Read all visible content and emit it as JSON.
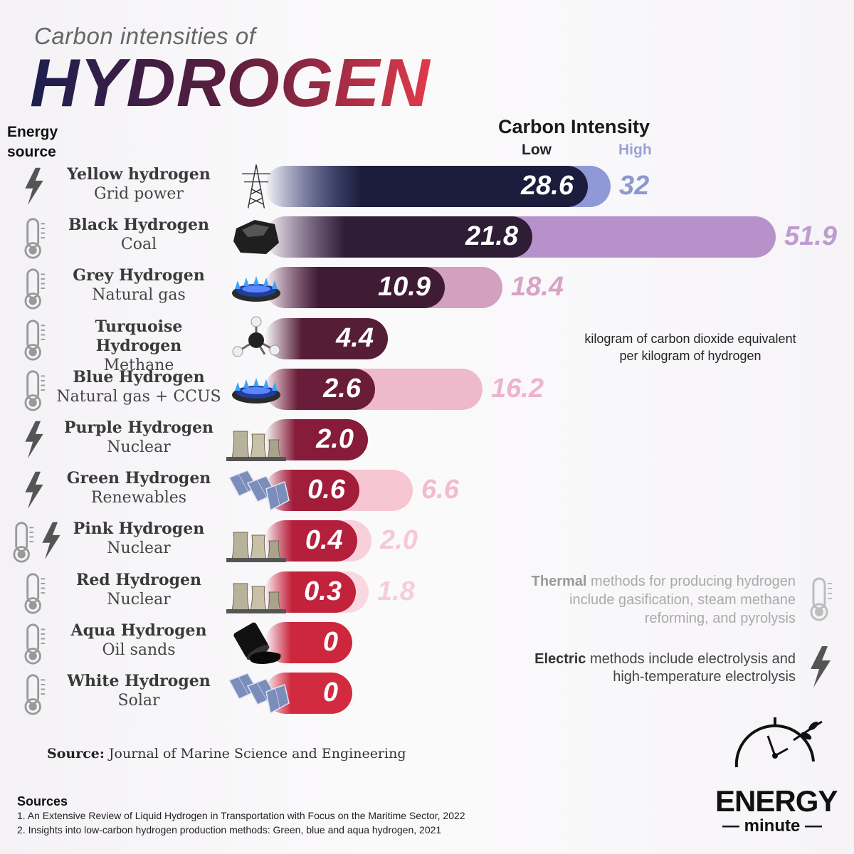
{
  "header": {
    "subtitle": "Carbon intensities of",
    "title": "HYDROGEN"
  },
  "energy_source_label": [
    "Energy",
    "source"
  ],
  "chart_data": {
    "type": "bar",
    "title": "Carbon Intensity",
    "legend": {
      "low": "Low",
      "high": "High"
    },
    "unit": "kilogram of carbon dioxide equivalent per kilogram of hydrogen",
    "categories": [
      "Yellow hydrogen",
      "Black Hydrogen",
      "Grey Hydrogen",
      "Turquoise Hydrogen",
      "Blue Hydrogen",
      "Purple Hydrogen",
      "Green Hydrogen",
      "Pink Hydrogen",
      "Red Hydrogen",
      "Aqua Hydrogen",
      "White Hydrogen"
    ],
    "series": [
      {
        "name": "Low",
        "values": [
          28.6,
          21.8,
          10.9,
          4.4,
          2.6,
          2.0,
          0.6,
          0.4,
          0.3,
          0,
          0
        ]
      },
      {
        "name": "High",
        "values": [
          32,
          51.9,
          18.4,
          null,
          16.2,
          null,
          6.6,
          2.0,
          1.8,
          null,
          null
        ]
      }
    ],
    "rows": [
      {
        "name": "Yellow hydrogen",
        "source": "Grid power",
        "method": "electric",
        "pic": "pylon",
        "low": "28.6",
        "high": "32",
        "low_num": 28.6,
        "high_num": 32,
        "color": "#1c1d3c",
        "high_color": "#8f99d6",
        "high_text": "#8d98cf"
      },
      {
        "name": "Black Hydrogen",
        "source": "Coal",
        "method": "thermal",
        "pic": "coal",
        "low": "21.8",
        "high": "51.9",
        "low_num": 21.8,
        "high_num": 51.9,
        "color": "#2f1d36",
        "high_color": "#b791c9",
        "high_text": "#bf9bd0"
      },
      {
        "name": "Grey Hydrogen",
        "source": "Natural gas",
        "method": "thermal",
        "pic": "gas-burner",
        "low": "10.9",
        "high": "18.4",
        "low_num": 10.9,
        "high_num": 18.4,
        "color": "#401c34",
        "high_color": "#d3a0bf",
        "high_text": "#d7a4c4"
      },
      {
        "name": "Turquoise Hydrogen",
        "source": "Methane",
        "method": "thermal",
        "pic": "molecule",
        "low": "4.4",
        "high": "",
        "low_num": 4.4,
        "high_num": null,
        "color": "#561d37",
        "high_color": "",
        "high_text": ""
      },
      {
        "name": "Blue Hydrogen",
        "source": "Natural gas + CCUS",
        "method": "thermal",
        "pic": "gas-burner",
        "low": "2.6",
        "high": "16.2",
        "low_num": 2.6,
        "high_num": 16.2,
        "color": "#6a1d38",
        "high_color": "#efb9cc",
        "high_text": "#eeb4c9"
      },
      {
        "name": "Purple Hydrogen",
        "source": "Nuclear",
        "method": "electric",
        "pic": "nuclear",
        "low": "2.0",
        "high": "",
        "low_num": 2.0,
        "high_num": null,
        "color": "#861c39",
        "high_color": "",
        "high_text": ""
      },
      {
        "name": "Green Hydrogen",
        "source": "Renewables",
        "method": "electric",
        "pic": "solar",
        "low": "0.6",
        "high": "6.6",
        "low_num": 0.6,
        "high_num": 6.6,
        "color": "#a21d3a",
        "high_color": "#f6c6d2",
        "high_text": "#f3bccb"
      },
      {
        "name": "Pink Hydrogen",
        "source": "Nuclear",
        "method": "both",
        "pic": "nuclear",
        "low": "0.4",
        "high": "2.0",
        "low_num": 0.4,
        "high_num": 2.0,
        "color": "#b41f3b",
        "high_color": "#f8d0da",
        "high_text": "#f5c9d4"
      },
      {
        "name": "Red Hydrogen",
        "source": "Nuclear",
        "method": "thermal",
        "pic": "nuclear",
        "low": "0.3",
        "high": "1.8",
        "low_num": 0.3,
        "high_num": 1.8,
        "color": "#c2223c",
        "high_color": "#fad8e0",
        "high_text": "#f6ced8"
      },
      {
        "name": "Aqua Hydrogen",
        "source": "Oil sands",
        "method": "thermal",
        "pic": "oil-barrel",
        "low": "0",
        "high": "",
        "low_num": 0,
        "high_num": null,
        "color": "#cc273d",
        "high_color": "",
        "high_text": ""
      },
      {
        "name": "White Hydrogen",
        "source": "Solar",
        "method": "thermal",
        "pic": "solar",
        "low": "0",
        "high": "",
        "low_num": 0,
        "high_num": null,
        "color": "#d22b3f",
        "high_color": "",
        "high_text": ""
      }
    ]
  },
  "notes": {
    "unit_line1": "kilogram of carbon dioxide equivalent",
    "unit_line2": "per kilogram of hydrogen",
    "thermal_bold": "Thermal",
    "thermal_rest_1": " methods for producing hydrogen",
    "thermal_rest_2": "include gasification, steam methane",
    "thermal_rest_3": "reforming, and pyrolysis",
    "electric_bold": "Electric",
    "electric_rest_1": " methods include electrolysis and",
    "electric_rest_2": "high-temperature electrolysis"
  },
  "footer": {
    "source_label": "Source:",
    "source_text": " Journal of Marine Science and Engineering",
    "sources_heading": "Sources",
    "sources": [
      "1.  An Extensive Review of Liquid Hydrogen in Transportation with Focus on the Maritime Sector, 2022",
      "2.  Insights into low-carbon hydrogen production methods: Green, blue and aqua hydrogen, 2021"
    ],
    "logo_line1": "ENERGY",
    "logo_line2": "minute"
  }
}
